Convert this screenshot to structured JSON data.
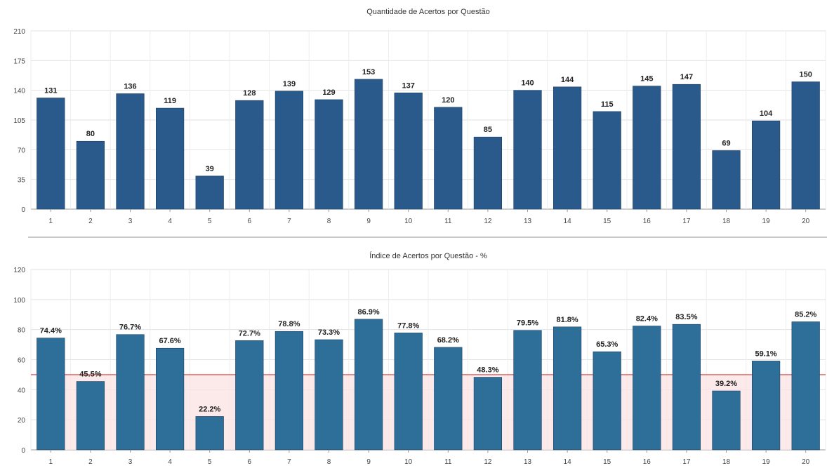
{
  "chart_data": [
    {
      "type": "bar",
      "title": "Quantidade de Acertos por Questão",
      "xlabel": "",
      "ylabel": "",
      "categories": [
        "1",
        "2",
        "3",
        "4",
        "5",
        "6",
        "7",
        "8",
        "9",
        "10",
        "11",
        "12",
        "13",
        "14",
        "15",
        "16",
        "17",
        "18",
        "19",
        "20"
      ],
      "values": [
        131,
        80,
        136,
        119,
        39,
        128,
        139,
        129,
        153,
        137,
        120,
        85,
        140,
        144,
        115,
        145,
        147,
        69,
        104,
        150
      ],
      "value_labels": [
        "131",
        "80",
        "136",
        "119",
        "39",
        "128",
        "139",
        "129",
        "153",
        "137",
        "120",
        "85",
        "140",
        "144",
        "115",
        "145",
        "147",
        "69",
        "104",
        "150"
      ],
      "ylim": [
        0,
        210
      ],
      "yticks": [
        0,
        35,
        70,
        105,
        140,
        175,
        210
      ],
      "ytick_labels": [
        "0",
        "35",
        "70",
        "105",
        "140",
        "175",
        "210"
      ],
      "grid": true,
      "bar_color": "#2a5a8c"
    },
    {
      "type": "bar",
      "title": "Índice de Acertos por Questão - %",
      "xlabel": "",
      "ylabel": "",
      "categories": [
        "1",
        "2",
        "3",
        "4",
        "5",
        "6",
        "7",
        "8",
        "9",
        "10",
        "11",
        "12",
        "13",
        "14",
        "15",
        "16",
        "17",
        "18",
        "19",
        "20"
      ],
      "values": [
        74.4,
        45.5,
        76.7,
        67.6,
        22.2,
        72.7,
        78.8,
        73.3,
        86.9,
        77.8,
        68.2,
        48.3,
        79.5,
        81.8,
        65.3,
        82.4,
        83.5,
        39.2,
        59.1,
        85.2
      ],
      "value_labels": [
        "74.4%",
        "45.5%",
        "76.7%",
        "67.6%",
        "22.2%",
        "72.7%",
        "78.8%",
        "73.3%",
        "86.9%",
        "77.8%",
        "68.2%",
        "48.3%",
        "79.5%",
        "81.8%",
        "65.3%",
        "82.4%",
        "83.5%",
        "39.2%",
        "59.1%",
        "85.2%"
      ],
      "ylim": [
        0,
        120
      ],
      "yticks": [
        0,
        20,
        40,
        60,
        80,
        100,
        120
      ],
      "ytick_labels": [
        "0",
        "20",
        "40",
        "60",
        "80",
        "100",
        "120"
      ],
      "threshold": 50,
      "threshold_color": "#e07070",
      "grid": true,
      "bar_color": "#2e6f9a"
    }
  ]
}
